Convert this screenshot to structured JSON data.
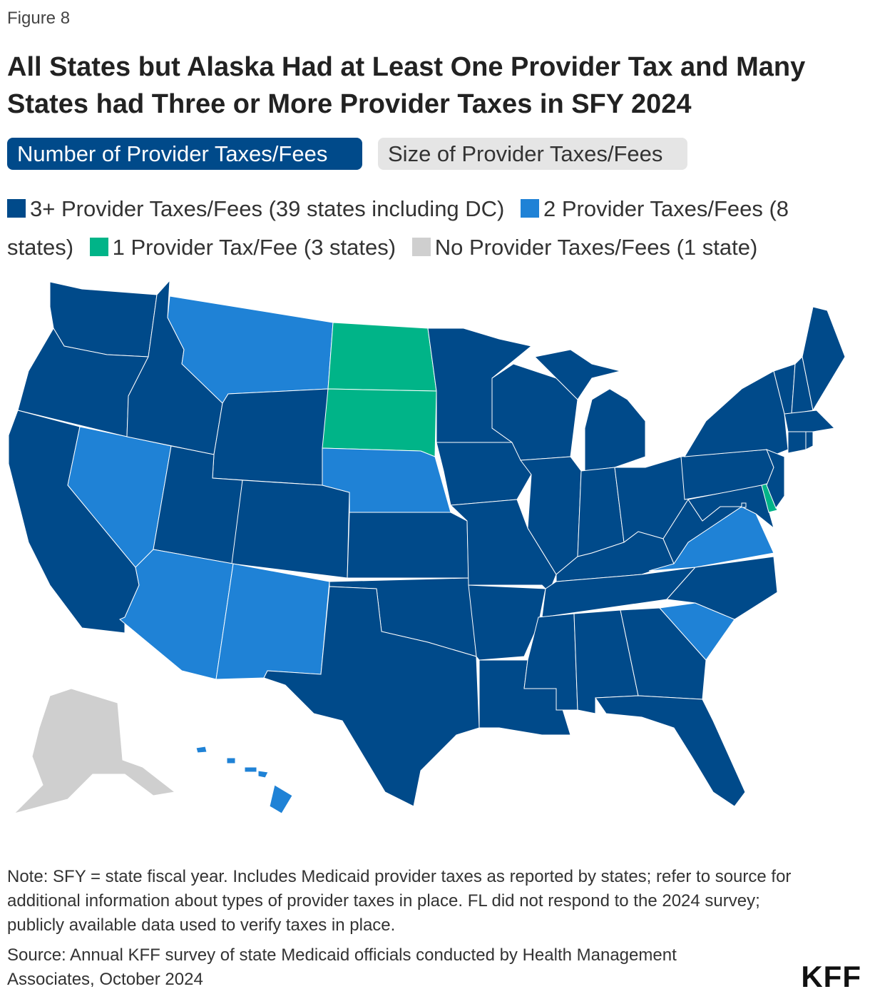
{
  "figure_label": "Figure 8",
  "title": "All States but Alaska Had at Least One Provider Tax and Many States had Three or More Provider Taxes in SFY 2024",
  "tabs": [
    {
      "label": "Number of Provider Taxes/Fees",
      "active": true
    },
    {
      "label": "Size of Provider Taxes/Fees",
      "active": false
    }
  ],
  "legend": [
    {
      "key": "3plus",
      "label": "3+ Provider Taxes/Fees (39 states including DC)",
      "color": "#004a8a"
    },
    {
      "key": "2",
      "label": "2 Provider Taxes/Fees (8 states)",
      "color": "#1f82d6"
    },
    {
      "key": "1",
      "label": "1 Provider Tax/Fee (3 states)",
      "color": "#00b488"
    },
    {
      "key": "0",
      "label": "No Provider Taxes/Fees (1 state)",
      "color": "#cfcfcf"
    }
  ],
  "states": {
    "WA": "3plus",
    "OR": "3plus",
    "CA": "3plus",
    "ID": "3plus",
    "NV": "2",
    "MT": "2",
    "WY": "3plus",
    "UT": "3plus",
    "CO": "3plus",
    "AZ": "2",
    "NM": "2",
    "ND": "1",
    "SD": "1",
    "NE": "2",
    "KS": "3plus",
    "OK": "3plus",
    "TX": "3plus",
    "MN": "3plus",
    "IA": "3plus",
    "MO": "3plus",
    "AR": "3plus",
    "LA": "3plus",
    "WI": "3plus",
    "IL": "3plus",
    "MI": "3plus",
    "IN": "3plus",
    "OH": "3plus",
    "KY": "3plus",
    "TN": "3plus",
    "MS": "3plus",
    "AL": "3plus",
    "GA": "3plus",
    "FL": "3plus",
    "SC": "2",
    "NC": "3plus",
    "VA": "2",
    "WV": "3plus",
    "PA": "3plus",
    "NY": "3plus",
    "MD": "3plus",
    "DE": "1",
    "NJ": "3plus",
    "VT": "3plus",
    "NH": "3plus",
    "ME": "3plus",
    "MA": "3plus",
    "CT": "3plus",
    "RI": "3plus",
    "DC": "3plus",
    "AK": "0",
    "HI": "2"
  },
  "note": "Note: SFY = state fiscal year. Includes Medicaid provider taxes as reported by states; refer to source for additional information about types of provider taxes in place. FL did not respond to the 2024 survey; publicly available data used to verify taxes in place.",
  "source": "Source: Annual KFF survey of state Medicaid officials conducted by Health Management Associates, October 2024",
  "logo": "KFF"
}
